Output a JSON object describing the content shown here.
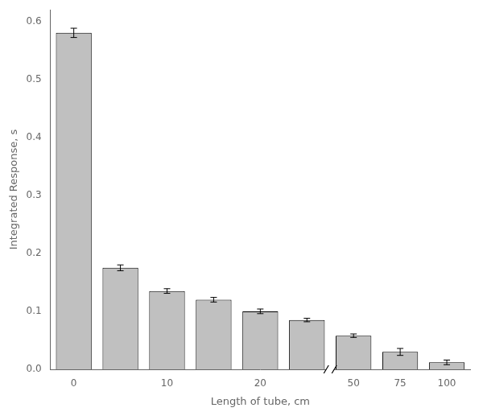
{
  "chart_data": {
    "type": "bar",
    "categories": [
      "0",
      null,
      "10",
      null,
      "20",
      null,
      "50",
      "75",
      "100"
    ],
    "values": [
      0.58,
      0.175,
      0.135,
      0.12,
      0.1,
      0.085,
      0.058,
      0.03,
      0.012
    ],
    "errors": [
      0.008,
      0.005,
      0.004,
      0.004,
      0.004,
      0.003,
      0.003,
      0.006,
      0.004
    ],
    "color": "#c0c0c0",
    "xlabel": "Length of tube, cm",
    "ylabel": "Integrated Response, s",
    "ylim": [
      0,
      0.62
    ],
    "yticks": [
      {
        "value": 0.0,
        "label": "0.0"
      },
      0.1,
      0.2,
      0.3,
      0.4,
      0.5,
      0.6
    ],
    "grid": false
  }
}
